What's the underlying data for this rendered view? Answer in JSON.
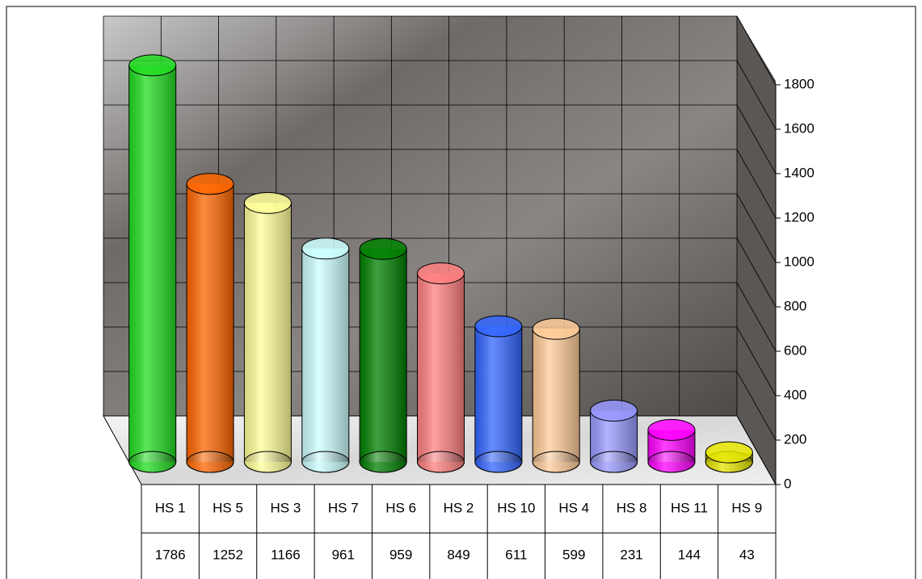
{
  "chart_data": {
    "type": "cylinder",
    "categories": [
      "HS 1",
      "HS 5",
      "HS 3",
      "HS 7",
      "HS 6",
      "HS 2",
      "HS 10",
      "HS 4",
      "HS 8",
      "HS 11",
      "HS 9"
    ],
    "values": [
      1786,
      1252,
      1166,
      961,
      959,
      849,
      611,
      599,
      231,
      144,
      43
    ],
    "colors": [
      "#22dd22",
      "#ff6600",
      "#ffff99",
      "#ccffff",
      "#008000",
      "#ff8080",
      "#3366ff",
      "#ffcc99",
      "#9999ff",
      "#ff00ff",
      "#e6e600"
    ],
    "ylim": [
      0,
      1800
    ],
    "yticks": [
      0,
      200,
      400,
      600,
      800,
      1000,
      1200,
      1400,
      1600,
      1800
    ],
    "grid": true
  }
}
